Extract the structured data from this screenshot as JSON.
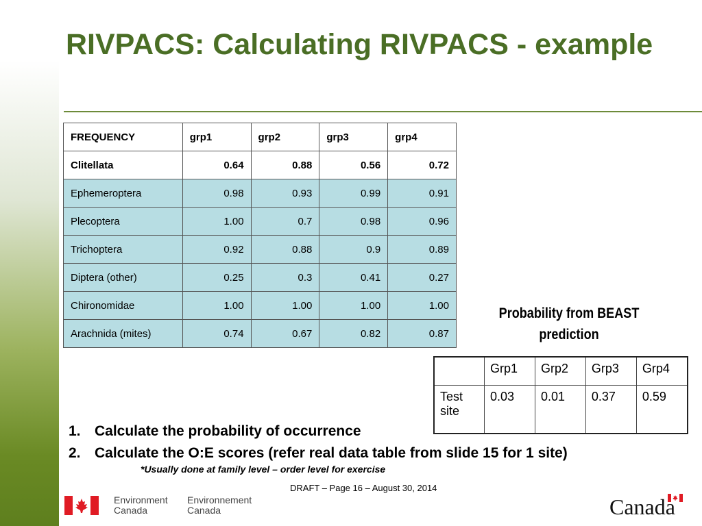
{
  "slide": {
    "title": "RIVPACS: Calculating RIVPACS - example"
  },
  "frequency_table": {
    "headers": [
      "FREQUENCY",
      "grp1",
      "grp2",
      "grp3",
      "grp4"
    ],
    "rows": [
      {
        "label": "Clitellata",
        "values": [
          "0.64",
          "0.88",
          "0.56",
          "0.72"
        ]
      },
      {
        "label": "Ephemeroptera",
        "values": [
          "0.98",
          "0.93",
          "0.99",
          "0.91"
        ]
      },
      {
        "label": "Plecoptera",
        "values": [
          "1.00",
          "0.7",
          "0.98",
          "0.96"
        ]
      },
      {
        "label": "Trichoptera",
        "values": [
          "0.92",
          "0.88",
          "0.9",
          "0.89"
        ]
      },
      {
        "label": "Diptera (other)",
        "values": [
          "0.25",
          "0.3",
          "0.41",
          "0.27"
        ]
      },
      {
        "label": "Chironomidae",
        "values": [
          "1.00",
          "1.00",
          "1.00",
          "1.00"
        ]
      },
      {
        "label": "Arachnida (mites)",
        "values": [
          "0.74",
          "0.67",
          "0.82",
          "0.87"
        ]
      }
    ]
  },
  "beast": {
    "caption_line1": "Probability from BEAST",
    "caption_line2": "prediction",
    "headers": [
      "",
      "Grp1",
      "Grp2",
      "Grp3",
      "Grp4"
    ],
    "row_label": "Test site",
    "row_values": [
      "0.03",
      "0.01",
      "0.37",
      "0.59"
    ]
  },
  "steps": [
    {
      "num": "1.",
      "text": "Calculate the probability of occurrence"
    },
    {
      "num": "2.",
      "text": "Calculate the O:E scores (refer real data table from slide 15 for 1 site)"
    }
  ],
  "note": "*Usually done at family level – order level for exercise",
  "footer": {
    "page_text": "DRAFT – Page 16 – August 30, 2014",
    "org_en_line1": "Environment",
    "org_en_line2": "Canada",
    "org_fr_line1": "Environnement",
    "org_fr_line2": "Canada",
    "wordmark": "Canada"
  },
  "colors": {
    "title": "#4a6e25",
    "table_shade": "#b7dde3",
    "flag_red": "#e01b24"
  },
  "icons": [
    "canada-flag-icon"
  ]
}
